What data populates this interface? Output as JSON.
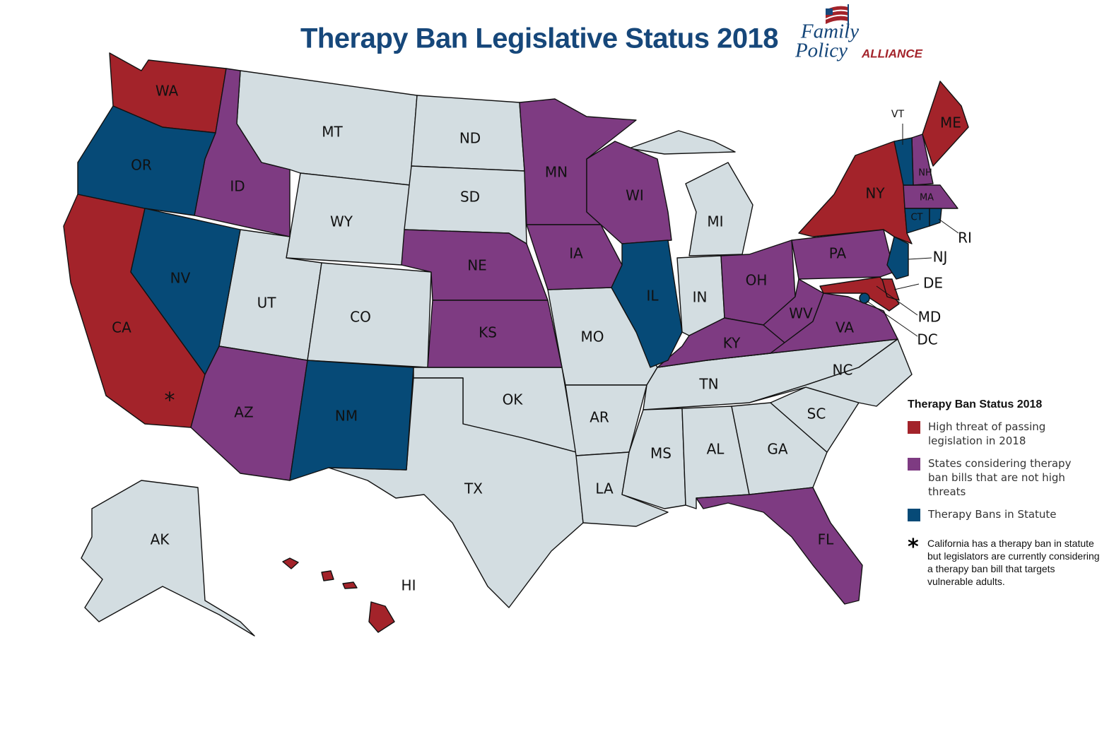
{
  "header": {
    "title": "Therapy Ban Legislative Status 2018",
    "logo": {
      "line1": "Family",
      "line2": "Policy",
      "line3": "ALLIANCE"
    }
  },
  "legend": {
    "title": "Therapy Ban Status 2018",
    "items": [
      {
        "label": "High threat of passing legislation in 2018",
        "color": "#a3232a",
        "states": [
          "WA",
          "CA",
          "NY",
          "ME",
          "MD",
          "DE",
          "HI"
        ]
      },
      {
        "label": "States considering therapy ban bills that are not high threats",
        "color": "#7e3b82",
        "states": [
          "ID",
          "AZ",
          "MN",
          "NE",
          "KS",
          "IA",
          "WI",
          "OH",
          "KY",
          "PA",
          "WV",
          "VA",
          "FL",
          "MA",
          "NH"
        ]
      },
      {
        "label": "Therapy Bans in Statute",
        "color": "#064a77",
        "states": [
          "OR",
          "NV",
          "NM",
          "IL",
          "VT",
          "CT",
          "RI",
          "NJ",
          "DC"
        ]
      }
    ],
    "note": {
      "symbol": "*",
      "text": "California has a therapy ban in statute but legislators are currently considering a therapy ban bill that targets vulnerable adults."
    }
  },
  "unlisted_states": {
    "color": "#d3dde1",
    "states": [
      "MT",
      "WY",
      "UT",
      "CO",
      "ND",
      "SD",
      "OK",
      "TX",
      "MO",
      "AR",
      "LA",
      "MI",
      "IN",
      "TN",
      "MS",
      "AL",
      "GA",
      "SC",
      "NC",
      "AK"
    ]
  }
}
